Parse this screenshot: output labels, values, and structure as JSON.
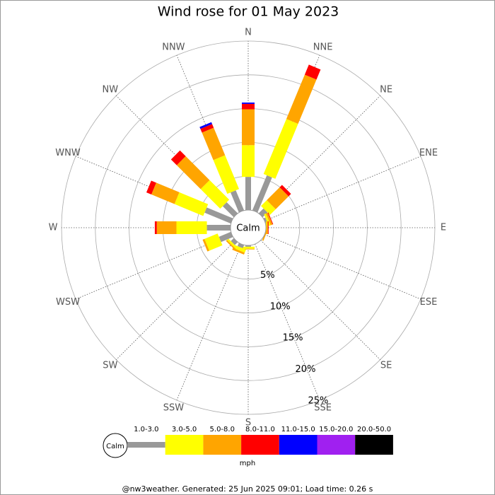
{
  "chart_data": {
    "type": "windrose",
    "title": "Wind rose for 01 May 2023",
    "categories": [
      "N",
      "NNE",
      "NE",
      "ENE",
      "E",
      "ESE",
      "SE",
      "SSE",
      "S",
      "SSW",
      "SW",
      "WSW",
      "W",
      "WNW",
      "NW",
      "NNW"
    ],
    "calm_label": "Calm",
    "unit_label": "mph",
    "rlim": [
      0,
      25
    ],
    "rticks": [
      {
        "value": 5,
        "label": "5%"
      },
      {
        "value": 10,
        "label": "10%"
      },
      {
        "value": 15,
        "label": "15%"
      },
      {
        "value": 20,
        "label": "20%"
      },
      {
        "value": 25,
        "label": "25%"
      }
    ],
    "grid": true,
    "series": [
      {
        "name": "1.0-3.0",
        "color": "#999999",
        "values": [
          4.9,
          5.6,
          1.0,
          0.3,
          0,
          0,
          0,
          0,
          0.2,
          0.5,
          0.6,
          1.9,
          3.5,
          4.2,
          2.3,
          3.2
        ]
      },
      {
        "name": "3.0-5.0",
        "color": "#ffff00",
        "values": [
          4.7,
          8.8,
          1.2,
          0.3,
          0.1,
          0,
          0,
          0,
          0.3,
          0.5,
          0.3,
          2.1,
          4.5,
          4.6,
          4.1,
          5.4
        ]
      },
      {
        "name": "5.0-8.0",
        "color": "#ffa500",
        "values": [
          5.3,
          7.1,
          2.7,
          0.3,
          0.2,
          0.2,
          0,
          0,
          0.1,
          0.3,
          0.2,
          0.3,
          2.9,
          3.7,
          5.0,
          4.4
        ]
      },
      {
        "name": "8.0-11.0",
        "color": "#ff0000",
        "values": [
          0.8,
          1.6,
          0.5,
          0.1,
          0.1,
          0,
          0,
          0,
          0,
          0,
          0,
          0,
          0.3,
          0.8,
          1.2,
          0.6
        ]
      },
      {
        "name": "11.0-15.0",
        "color": "#0000ff",
        "values": [
          0.2,
          0,
          0,
          0,
          0,
          0,
          0,
          0,
          0,
          0,
          0,
          0,
          0,
          0,
          0,
          0.3
        ]
      },
      {
        "name": "15.0-20.0",
        "color": "#a020f0",
        "values": [
          0,
          0,
          0,
          0,
          0,
          0,
          0,
          0,
          0,
          0,
          0,
          0,
          0,
          0,
          0,
          0
        ]
      },
      {
        "name": "20.0-50.0",
        "color": "#000000",
        "values": [
          0,
          0,
          0,
          0,
          0,
          0,
          0,
          0,
          0,
          0,
          0,
          0,
          0,
          0,
          0,
          0
        ]
      }
    ],
    "footer": "@nw3weather. Generated: 25 Jun 2025 09:01; Load time: 0.26 s"
  }
}
